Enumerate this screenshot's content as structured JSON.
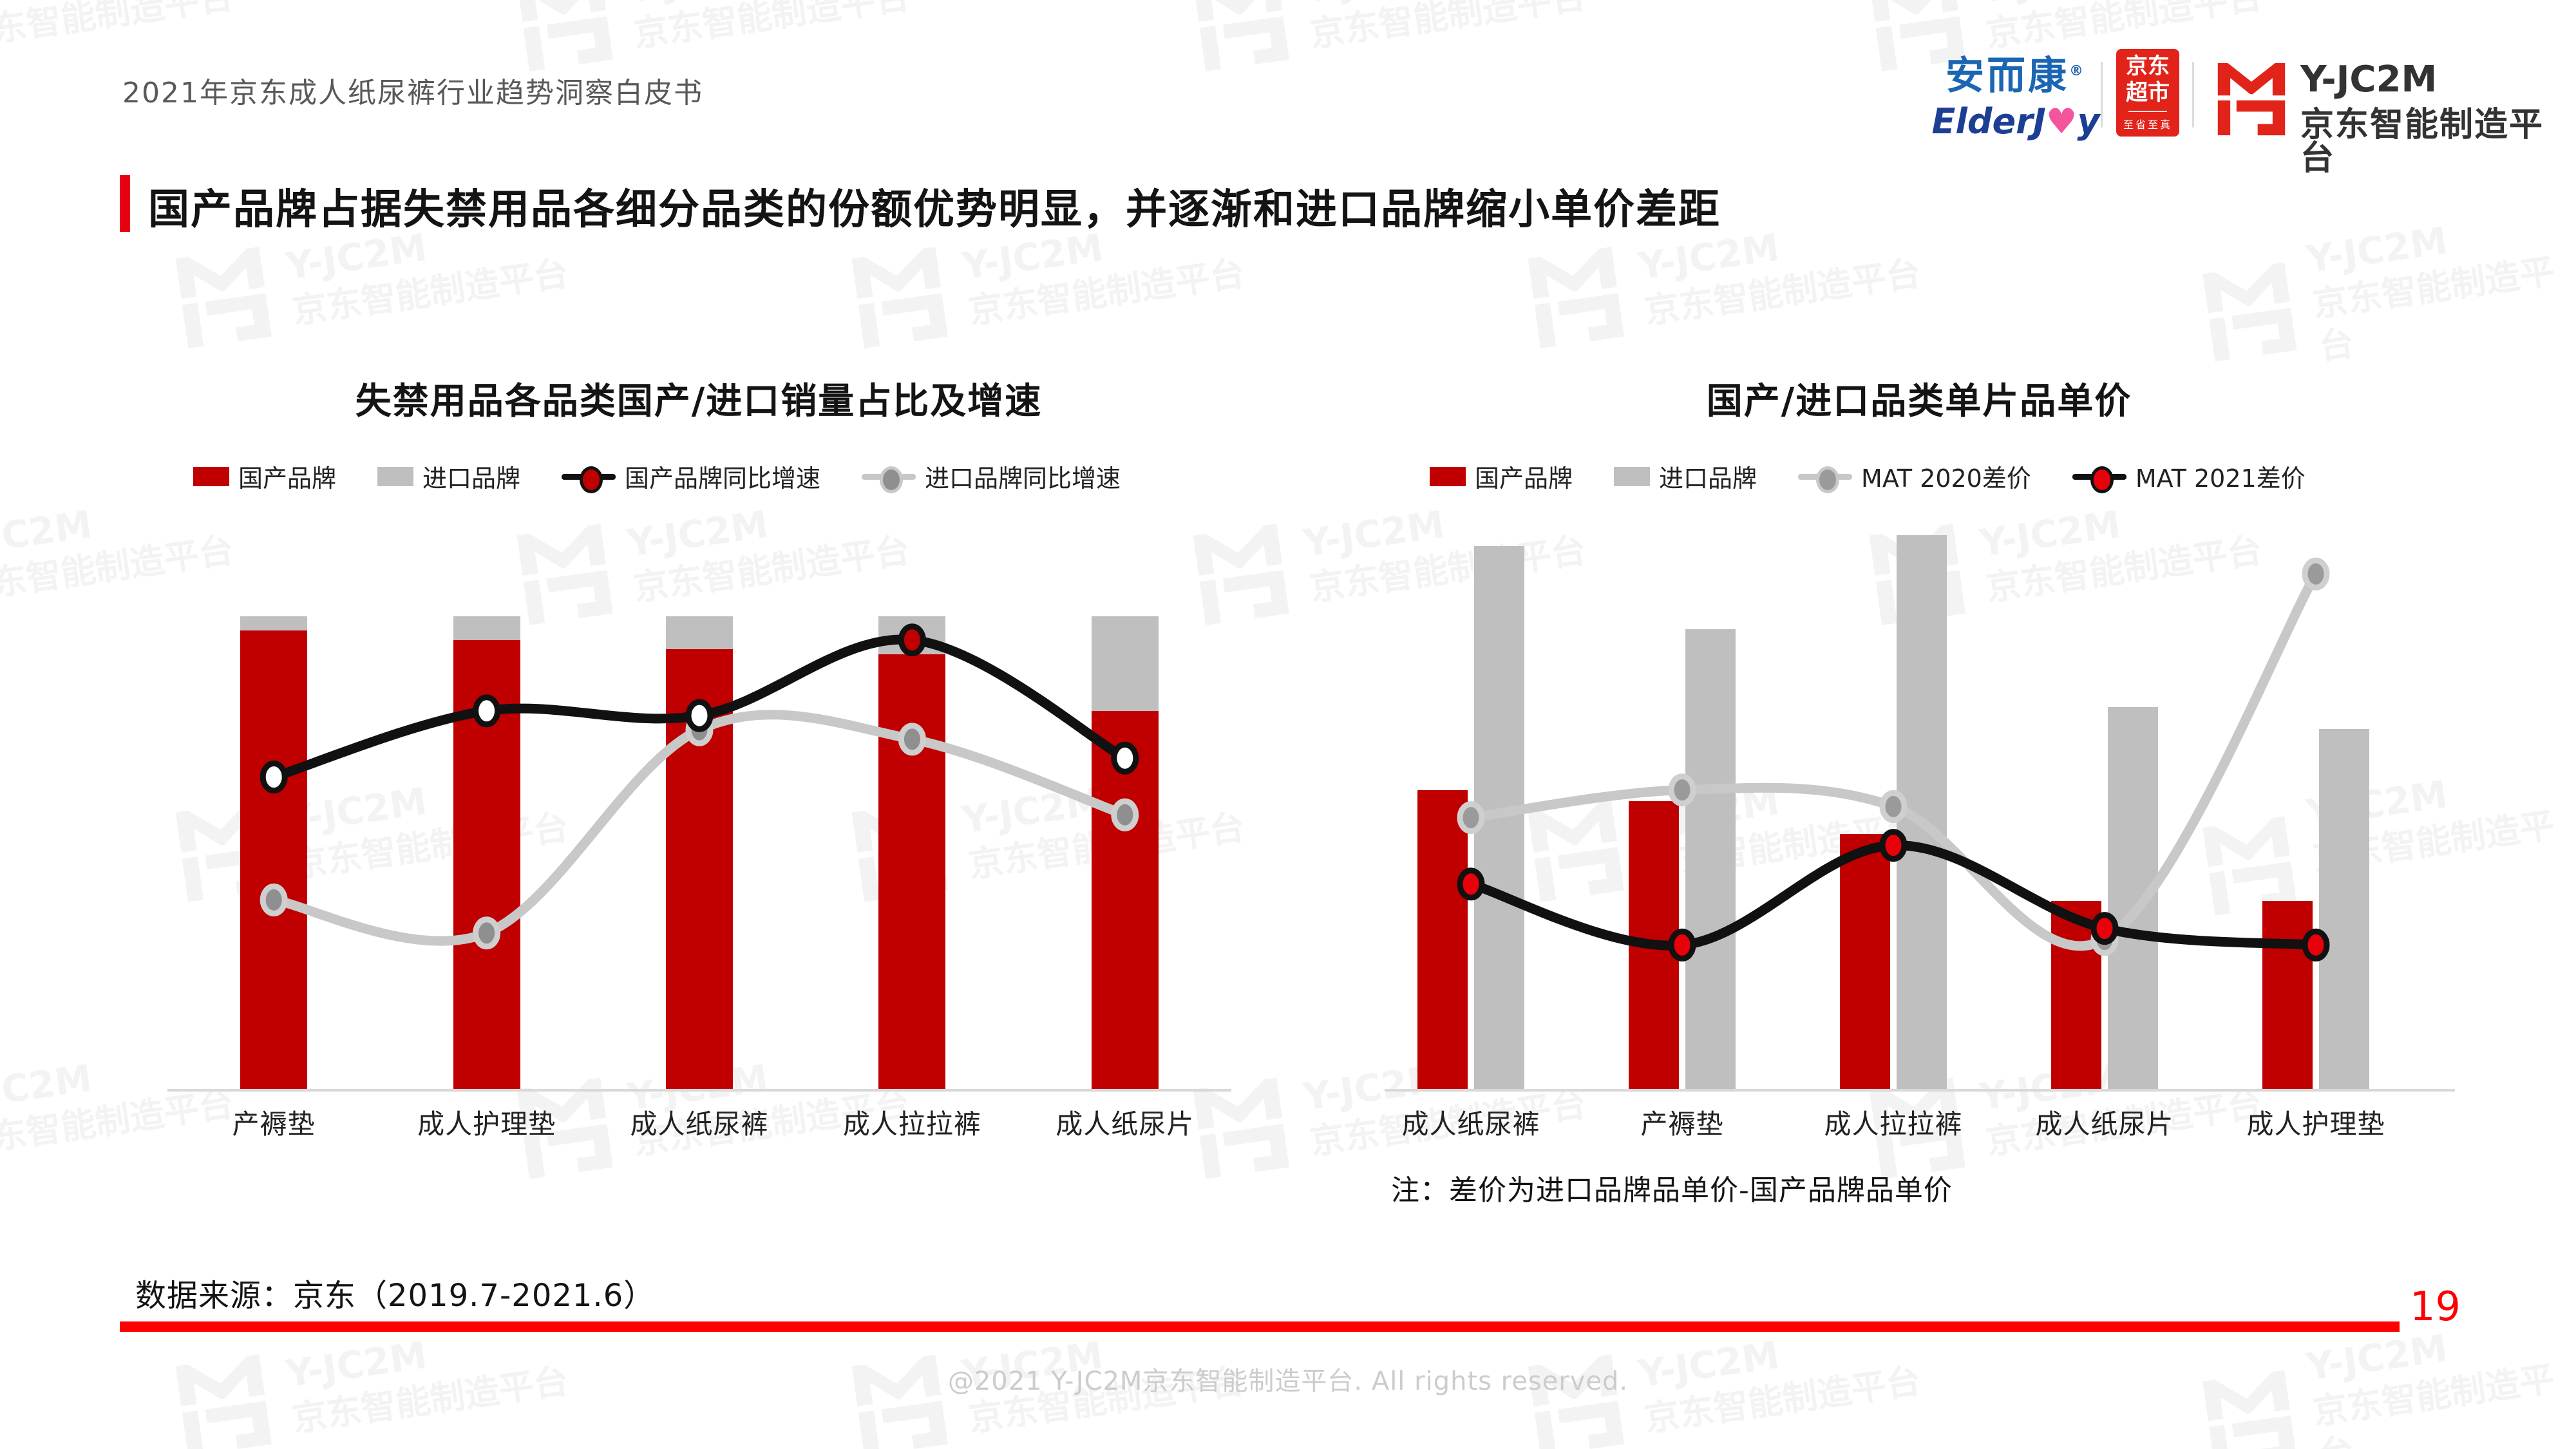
{
  "header": {
    "document_title": "2021年京东成人纸尿裤行业趋势洞察白皮书"
  },
  "logos": {
    "elderjoy_cn": "安而康",
    "elderjoy_reg": "®",
    "elderjoy_en_prefix": "ElderJ",
    "elderjoy_en_suffix": "y",
    "elderjoy_heart": "♥",
    "jd_line1": "京东",
    "jd_line2": "超市",
    "jd_slogan": "至省至真",
    "jc2m_name": "Y-JC2M",
    "jc2m_platform": "京东智能制造平台"
  },
  "page_title": "国产品牌占据失禁用品各细分品类的份额优势明显，并逐渐和进口品牌缩小单价差距",
  "watermark": {
    "line1": "Y-JC2M",
    "line2": "京东智能制造平台"
  },
  "colors": {
    "domestic_red": "#c00000",
    "import_gray": "#bfbfbf",
    "line_black": "#111111",
    "line_gray": "#c8c8c8",
    "marker_gray": "#8f8f8f",
    "accent_red": "#e60012",
    "footer_red": "#fe0000",
    "jd_red": "#e2231a",
    "elderjoy_blue": "#1a66b3",
    "elderjoy_navy": "#1c3f93",
    "elderjoy_pink": "#f4559c"
  },
  "chart_data": [
    {
      "type": "bar",
      "subtype": "stacked-100pct-with-lines",
      "title": "失禁用品各品类国产/进口销量占比及增速",
      "categories": [
        "产褥垫",
        "成人护理垫",
        "成人纸尿裤",
        "成人拉拉裤",
        "成人纸尿片"
      ],
      "value_axis_labels_visible": false,
      "values_estimated_from_pixels": true,
      "bar_series": [
        {
          "name": "国产品牌",
          "color": "#c00000",
          "unit": "% share",
          "values": [
            97,
            95,
            93,
            92,
            80
          ]
        },
        {
          "name": "进口品牌",
          "color": "#bfbfbf",
          "unit": "% share",
          "values": [
            3,
            5,
            7,
            8,
            20
          ]
        }
      ],
      "line_series": [
        {
          "name": "进口品牌同比增速",
          "color": "#c8c8c8",
          "marker_fill": "#8f8f8f",
          "marker_stroke": "#cfcfcf",
          "unit": "relative height 0-100 (axis unlabeled)",
          "values": [
            40,
            33,
            76,
            74,
            58
          ]
        },
        {
          "name": "国产品牌同比增速",
          "color": "#111111",
          "marker_fill": "#ffffff",
          "marker_stroke": "#111111",
          "marker_fills": [
            "#ffffff",
            "#ffffff",
            "#ffffff",
            "#c00000",
            "#ffffff"
          ],
          "unit": "relative height 0-100 (axis unlabeled)",
          "values": [
            66,
            80,
            79,
            95,
            70
          ]
        }
      ],
      "legend": [
        {
          "label": "国产品牌",
          "swatch": "rect",
          "color": "#c00000"
        },
        {
          "label": "进口品牌",
          "swatch": "rect",
          "color": "#bfbfbf"
        },
        {
          "label": "国产品牌同比增速",
          "swatch": "line",
          "color": "#111111",
          "dot": "#c00000",
          "dot_stroke": "#111111"
        },
        {
          "label": "进口品牌同比增速",
          "swatch": "line",
          "color": "#c8c8c8",
          "dot": "#8f8f8f",
          "dot_stroke": "#c8c8c8"
        }
      ],
      "legend_position": "top",
      "grid": false
    },
    {
      "type": "bar",
      "subtype": "grouped-with-lines",
      "title": "国产/进口品类单片品单价",
      "categories": [
        "成人纸尿裤",
        "产褥垫",
        "成人拉拉裤",
        "成人纸尿片",
        "成人护理垫"
      ],
      "value_axis_labels_visible": false,
      "values_estimated_from_pixels": true,
      "bar_series": [
        {
          "name": "国产品牌",
          "color": "#c00000",
          "unit": "relative price 0-100 (axis unlabeled)",
          "values": [
            54,
            52,
            46,
            34,
            34
          ]
        },
        {
          "name": "进口品牌",
          "color": "#bfbfbf",
          "unit": "relative price 0-100 (axis unlabeled)",
          "values": [
            98,
            83,
            100,
            69,
            65
          ]
        }
      ],
      "line_series": [
        {
          "name": "MAT 2020差价",
          "color": "#c8c8c8",
          "marker_fill": "#9a9a9a",
          "marker_stroke": "#cfcfcf",
          "unit": "relative price gap 0-100 (axis unlabeled)",
          "values": [
            49,
            54,
            51,
            27,
            93
          ]
        },
        {
          "name": "MAT 2021差价",
          "color": "#111111",
          "marker_fill": "#e8000b",
          "marker_stroke": "#111111",
          "unit": "relative price gap 0-100 (axis unlabeled)",
          "values": [
            37,
            26,
            44,
            29,
            26
          ]
        }
      ],
      "legend": [
        {
          "label": "国产品牌",
          "swatch": "rect",
          "color": "#c00000"
        },
        {
          "label": "进口品牌",
          "swatch": "rect",
          "color": "#bfbfbf"
        },
        {
          "label": "MAT 2020差价",
          "swatch": "line",
          "color": "#c8c8c8",
          "dot": "#9a9a9a",
          "dot_stroke": "#c8c8c8"
        },
        {
          "label": "MAT 2021差价",
          "swatch": "line",
          "color": "#111111",
          "dot": "#e8000b",
          "dot_stroke": "#111111"
        }
      ],
      "legend_position": "top",
      "grid": false,
      "note": "注：差价为进口品牌品单价-国产品牌品单价"
    }
  ],
  "footer": {
    "source": "数据来源：京东（2019.7-2021.6）",
    "page_number": "19",
    "copyright": "@2021 Y-JC2M京东智能制造平台. All rights reserved."
  }
}
